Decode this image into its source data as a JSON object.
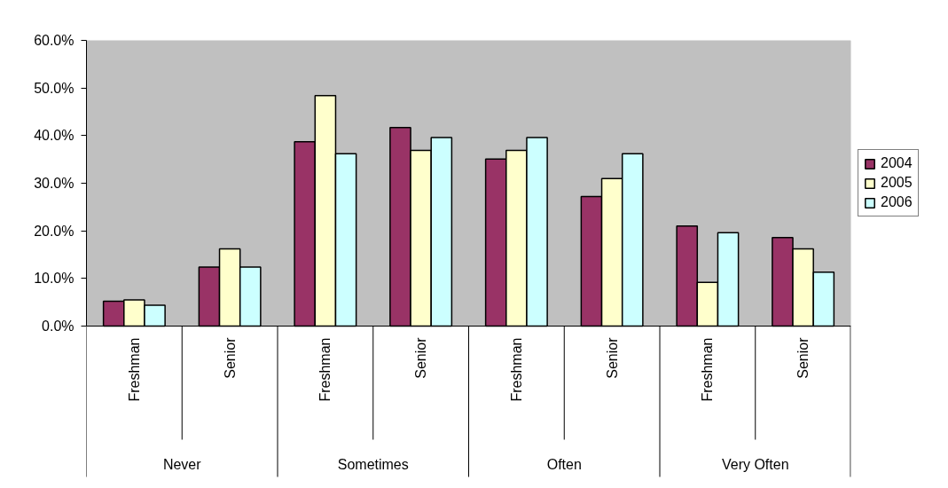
{
  "chart_data": {
    "type": "bar",
    "categories": [
      [
        "Never",
        "Freshman"
      ],
      [
        null,
        "Senior"
      ],
      [
        "Sometimes",
        "Freshman"
      ],
      [
        null,
        "Senior"
      ],
      [
        "Often",
        "Freshman"
      ],
      [
        null,
        "Senior"
      ],
      [
        "Very Often",
        "Freshman"
      ],
      [
        null,
        "Senior"
      ]
    ],
    "series": [
      {
        "name": "2004",
        "color": "#993366",
        "values": [
          5.2,
          12.4,
          38.7,
          41.7,
          35.1,
          27.2,
          21.0,
          18.6
        ]
      },
      {
        "name": "2005",
        "color": "#ffffcc",
        "values": [
          5.5,
          16.2,
          48.4,
          36.9,
          36.9,
          31.0,
          9.2,
          16.2
        ]
      },
      {
        "name": "2006",
        "color": "#ccffff",
        "values": [
          4.4,
          12.4,
          36.2,
          39.6,
          39.6,
          36.2,
          19.6,
          11.3
        ]
      }
    ],
    "ylim": [
      0,
      60
    ],
    "yticks": [
      {
        "value": 0,
        "label": "0.0%"
      },
      {
        "value": 10,
        "label": "10.0%"
      },
      {
        "value": 20,
        "label": "20.0%"
      },
      {
        "value": 30,
        "label": "30.0%"
      },
      {
        "value": 40,
        "label": "40.0%"
      },
      {
        "value": 50,
        "label": "50.0%"
      },
      {
        "value": 60,
        "label": "60.0%"
      }
    ],
    "grid": false,
    "legend": "right"
  }
}
